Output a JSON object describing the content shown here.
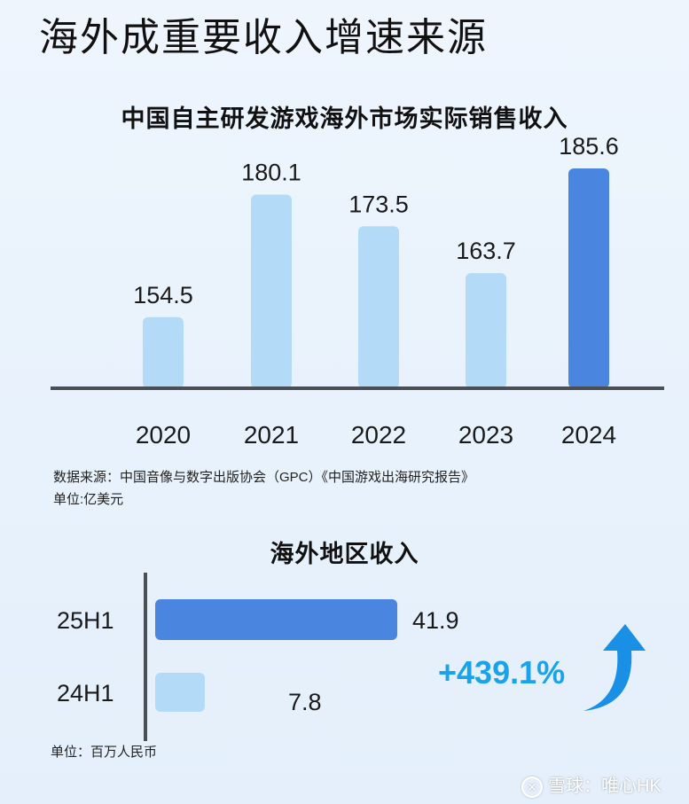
{
  "main_title": "海外成重要收入增速来源",
  "chart_data": [
    {
      "type": "bar",
      "title": "中国自主研发游戏海外市场实际销售收入",
      "categories": [
        "2020",
        "2021",
        "2022",
        "2023",
        "2024"
      ],
      "values": [
        154.5,
        180.1,
        173.5,
        163.7,
        185.6
      ],
      "value_labels": [
        "154.5",
        "180.1",
        "173.5",
        "163.7",
        "185.6"
      ],
      "highlight_index": 4,
      "colors": {
        "normal": "#b3dbf8",
        "highlight": "#4a86e0",
        "axis": "#4a4f55"
      },
      "source": "数据来源：中国音像与数字出版协会（GPC）《中国游戏出海研究报告》",
      "unit": "单位:亿美元"
    },
    {
      "type": "bar",
      "orientation": "horizontal",
      "title": "海外地区收入",
      "categories": [
        "25H1",
        "24H1"
      ],
      "values": [
        41.9,
        7.8
      ],
      "value_labels": [
        "41.9",
        "7.8"
      ],
      "colors": {
        "25H1": "#4a86e0",
        "24H1": "#b3dbf8",
        "axis": "#4a4f55"
      },
      "growth": "+439.1%",
      "growth_color": "#1aa3ea",
      "unit": "单位：百万人民币"
    }
  ],
  "watermark": {
    "icon": "snowball-icon",
    "text": "雪球：唯心HK"
  }
}
